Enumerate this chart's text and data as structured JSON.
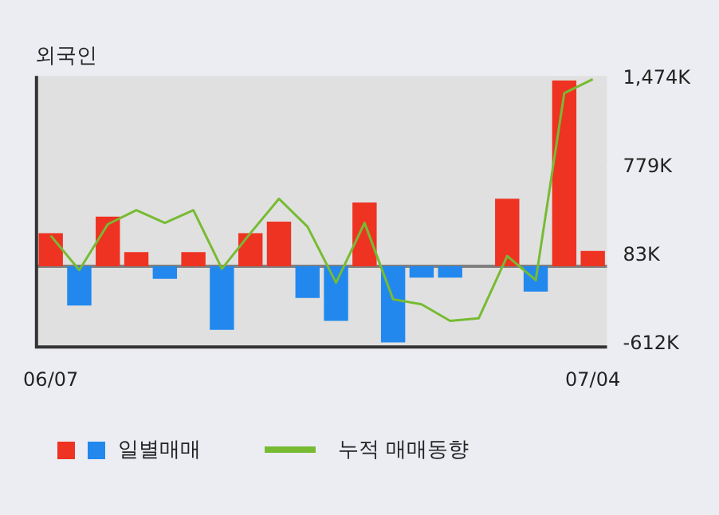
{
  "chart_data": {
    "type": "bar",
    "title": "외국인",
    "categories": [
      "06/07",
      null,
      null,
      null,
      null,
      null,
      null,
      null,
      null,
      null,
      null,
      null,
      null,
      null,
      null,
      null,
      null,
      null,
      null,
      "07/04"
    ],
    "series": [
      {
        "name": "일별매매",
        "colors": [
          "#ee3322",
          "#2288ee",
          "#ee3322",
          "#ee3322",
          "#2288ee",
          "#ee3322",
          "#2288ee",
          "#ee3322",
          "#ee3322",
          "#2288ee",
          "#2288ee",
          "#ee3322",
          "#2288ee",
          "#2288ee",
          "#2288ee",
          "#ee3322",
          "#ee3322",
          "#2288ee",
          "#ee3322",
          "#ee3322"
        ],
        "values": [
          260,
          -310,
          390,
          110,
          -100,
          110,
          -500,
          260,
          350,
          -250,
          -430,
          500,
          -600,
          -90,
          -90,
          0,
          530,
          -200,
          1460,
          120
        ]
      },
      {
        "name": "누적 매매동향",
        "type": "line",
        "color": "#77bb33",
        "values": [
          240,
          -30,
          330,
          440,
          340,
          440,
          -20,
          260,
          530,
          310,
          -130,
          340,
          -260,
          -300,
          -430,
          -410,
          80,
          -110,
          1360,
          1470
        ]
      }
    ],
    "ylim": [
      -635,
      1496
    ],
    "yticks": [
      {
        "value": -612,
        "label": "-612K"
      },
      {
        "value": 83,
        "label": "83K"
      },
      {
        "value": 779,
        "label": "779K"
      },
      {
        "value": 1474,
        "label": "1,474K"
      }
    ],
    "ref_lines": [
      {
        "axis": "y",
        "value": 0,
        "label": null,
        "color": "#808080"
      }
    ],
    "grid": true,
    "legend": "bottom",
    "marker": "none",
    "line_style": "solid"
  }
}
